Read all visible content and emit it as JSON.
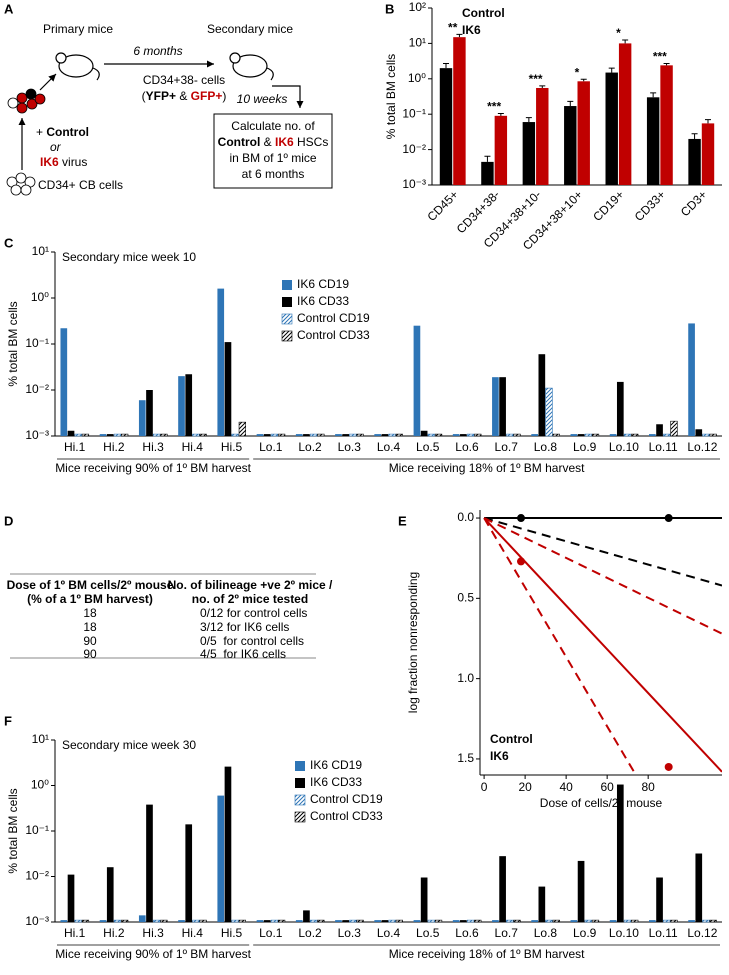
{
  "panel_a": {
    "panel_label": "A",
    "primary": "Primary mice",
    "secondary": "Secondary mice",
    "interval_1": "6 months",
    "interval_2": "10 weeks",
    "cells": "CD34+38- cells",
    "markers": [
      "(",
      "YFP+",
      " & ",
      "GFP+",
      ")"
    ],
    "virus_control": [
      "+ ",
      "Control"
    ],
    "or": "or",
    "virus_ik6": [
      "IK6",
      " virus"
    ],
    "source": "CD34+ CB cells",
    "box_line_1": "Calculate no. of",
    "box_line_2": [
      "Control",
      " & ",
      "IK6",
      " HSCs"
    ],
    "box_line_3": "in BM of 1º mice",
    "box_line_4": "at 6 months"
  },
  "panel_d": {
    "panel_label": "D",
    "header": [
      [
        "Dose of 1º BM cells/2º mouse",
        "(% of a 1º BM harvest)"
      ],
      [
        "No. of bilineage +ve 2º mice /",
        "no. of 2º mice tested"
      ]
    ],
    "rows": [
      [
        "18",
        "0/12 for control cells"
      ],
      [
        "18",
        "3/12 for IK6 cells"
      ],
      [
        "90",
        "0/5  for control cells"
      ],
      [
        "90",
        "4/5  for IK6 cells"
      ]
    ]
  },
  "chart_data": [
    {
      "panel_label": "B",
      "type": "bar",
      "y_label": "% total BM cells",
      "log_y": true,
      "categories": [
        "CD45+",
        "CD34+38-",
        "CD34+38+10-",
        "CD34+38+10+",
        "CD19+",
        "CD33+",
        "CD3+"
      ],
      "series": [
        {
          "name": "Control",
          "color": "#000000",
          "values": [
            2,
            0.0045,
            0.06,
            0.17,
            1.5,
            0.3,
            0.02
          ],
          "errors": [
            0.7,
            0.002,
            0.02,
            0.06,
            0.5,
            0.1,
            0.008
          ]
        },
        {
          "name": "IK6",
          "color": "#c00000",
          "values": [
            15,
            0.09,
            0.55,
            0.85,
            10,
            2.4,
            0.055
          ],
          "errors": [
            3,
            0.015,
            0.08,
            0.12,
            2.5,
            0.3,
            0.015
          ]
        }
      ],
      "annotations": [
        "**",
        "***",
        "***",
        "*",
        "*",
        "***",
        null
      ],
      "ylim": [
        0.001,
        100
      ],
      "yticks": [
        {
          "value": 0.001,
          "label": "10⁻³"
        },
        {
          "value": 0.01,
          "label": "10⁻²"
        },
        {
          "value": 0.1,
          "label": "10⁻¹"
        },
        {
          "value": 1,
          "label": "10⁰"
        },
        {
          "value": 10,
          "label": "10¹"
        },
        {
          "value": 100,
          "label": "10²"
        }
      ],
      "legend": "top-left"
    },
    {
      "panel_label": "C",
      "type": "bar",
      "title": "Secondary mice week 10",
      "y_label": "% total BM cells",
      "log_y": true,
      "categories": [
        "Hi.1",
        "Hi.2",
        "Hi.3",
        "Hi.4",
        "Hi.5",
        "Lo.1",
        "Lo.2",
        "Lo.3",
        "Lo.4",
        "Lo.5",
        "Lo.6",
        "Lo.7",
        "Lo.8",
        "Lo.9",
        "Lo.10",
        "Lo.11",
        "Lo.12"
      ],
      "x_groups": [
        "Mice receiving 90% of 1º BM harvest",
        "Mice receiving 18% of 1º BM harvest"
      ],
      "series": [
        {
          "name": "IK6 CD19",
          "color": "#2e75b6",
          "values": [
            0.22,
            0.0011,
            0.006,
            0.02,
            1.6,
            0.0011,
            0.0011,
            0.0011,
            0.0011,
            0.25,
            0.0011,
            0.019,
            0.0011,
            0.0011,
            0.0011,
            0.0011,
            0.28
          ]
        },
        {
          "name": "IK6 CD33",
          "color": "#000000",
          "values": [
            0.0013,
            0.0011,
            0.01,
            0.022,
            0.11,
            0.0011,
            0.0011,
            0.0011,
            0.0011,
            0.0013,
            0.0011,
            0.019,
            0.06,
            0.0011,
            0.015,
            0.0018,
            0.0014
          ]
        },
        {
          "name": "Control CD19",
          "color": "#2e75b6",
          "hatch": true,
          "values": [
            0.0011,
            0.0011,
            0.0011,
            0.0011,
            0.0011,
            0.0011,
            0.0011,
            0.0011,
            0.0011,
            0.0011,
            0.0011,
            0.0011,
            0.011,
            0.0011,
            0.0011,
            0.0011,
            0.0011
          ]
        },
        {
          "name": "Control CD33",
          "color": "#000000",
          "hatch": true,
          "values": [
            0.0011,
            0.0011,
            0.0011,
            0.0011,
            0.002,
            0.0011,
            0.0011,
            0.0011,
            0.0011,
            0.0011,
            0.0011,
            0.0011,
            0.0011,
            0.0011,
            0.0011,
            0.0021,
            0.0011
          ]
        }
      ],
      "ylim": [
        0.001,
        10
      ],
      "yticks": [
        {
          "value": 0.001,
          "label": "10⁻³"
        },
        {
          "value": 0.01,
          "label": "10⁻²"
        },
        {
          "value": 0.1,
          "label": "10⁻¹"
        },
        {
          "value": 1,
          "label": "10⁰"
        },
        {
          "value": 10,
          "label": "10¹"
        }
      ],
      "legend": "top-center"
    },
    {
      "panel_label": "E",
      "type": "line",
      "x_label": "Dose of cells/2º mouse",
      "y_label": "log fraction nonresponding",
      "y_inverted": true,
      "xlim": [
        -2,
        116
      ],
      "xticks": [
        0,
        20,
        40,
        60,
        80
      ],
      "ylim": [
        -0.05,
        1.6
      ],
      "yticks": [
        {
          "value": 0,
          "label": "0.0"
        },
        0.5,
        {
          "value": 1,
          "label": "1.0"
        },
        1.5
      ],
      "series": [
        {
          "name": "Control",
          "color": "#000000",
          "style": "points",
          "x": [
            18,
            90
          ],
          "values": [
            0,
            0
          ]
        },
        {
          "name": "IK6",
          "color": "#c00000",
          "style": "points",
          "x": [
            18,
            90
          ],
          "values": [
            0.27,
            1.55
          ]
        },
        {
          "color": "#000000",
          "style": "solid",
          "x": [
            0,
            116
          ],
          "values": [
            0,
            0
          ]
        },
        {
          "color": "#000000",
          "style": "dashed",
          "x": [
            0,
            116
          ],
          "values": [
            0,
            0.42
          ]
        },
        {
          "color": "#c00000",
          "style": "solid",
          "x": [
            0,
            116
          ],
          "values": [
            0,
            1.58
          ]
        },
        {
          "color": "#c00000",
          "style": "dashed",
          "x": [
            0,
            116
          ],
          "values": [
            0,
            0.72
          ]
        },
        {
          "color": "#c00000",
          "style": "dashed",
          "x": [
            0,
            74
          ],
          "values": [
            0,
            1.6
          ]
        }
      ],
      "legend": "bottom-left"
    },
    {
      "panel_label": "F",
      "type": "bar",
      "title": "Secondary mice week 30",
      "y_label": "% total BM cells",
      "log_y": true,
      "categories": [
        "Hi.1",
        "Hi.2",
        "Hi.3",
        "Hi.4",
        "Hi.5",
        "Lo.1",
        "Lo.2",
        "Lo.3",
        "Lo.4",
        "Lo.5",
        "Lo.6",
        "Lo.7",
        "Lo.8",
        "Lo.9",
        "Lo.10",
        "Lo.11",
        "Lo.12"
      ],
      "x_groups": [
        "Mice receiving 90% of 1º BM harvest",
        "Mice receiving 18% of 1º BM harvest"
      ],
      "series": [
        {
          "name": "IK6 CD19",
          "color": "#2e75b6",
          "values": [
            0.0011,
            0.0011,
            0.0014,
            0.0011,
            0.6,
            0.0011,
            0.0011,
            0.0011,
            0.0011,
            0.0011,
            0.0011,
            0.0011,
            0.0011,
            0.0011,
            0.0011,
            0.0011,
            0.0011
          ]
        },
        {
          "name": "IK6 CD33",
          "color": "#000000",
          "values": [
            0.011,
            0.016,
            0.38,
            0.14,
            2.6,
            0.0011,
            0.0018,
            0.0011,
            0.0011,
            0.0095,
            0.0011,
            0.028,
            0.006,
            0.022,
            1.05,
            0.0095,
            0.032
          ]
        },
        {
          "name": "Control CD19",
          "color": "#2e75b6",
          "hatch": true,
          "values": [
            0.0011,
            0.0011,
            0.0011,
            0.0011,
            0.0011,
            0.0011,
            0.0011,
            0.0011,
            0.0011,
            0.0011,
            0.0011,
            0.0011,
            0.0011,
            0.0011,
            0.0011,
            0.0011,
            0.0011
          ]
        },
        {
          "name": "Control CD33",
          "color": "#000000",
          "hatch": true,
          "values": [
            0.0011,
            0.0011,
            0.0011,
            0.0011,
            0.0011,
            0.0011,
            0.0011,
            0.0011,
            0.0011,
            0.0011,
            0.0011,
            0.0011,
            0.0011,
            0.0011,
            0.0011,
            0.0011,
            0.0011
          ]
        }
      ],
      "ylim": [
        0.001,
        10
      ],
      "yticks": [
        {
          "value": 0.001,
          "label": "10⁻³"
        },
        {
          "value": 0.01,
          "label": "10⁻²"
        },
        {
          "value": 0.1,
          "label": "10⁻¹"
        },
        {
          "value": 1,
          "label": "10⁰"
        },
        {
          "value": 10,
          "label": "10¹"
        }
      ],
      "legend": "top-center"
    }
  ]
}
